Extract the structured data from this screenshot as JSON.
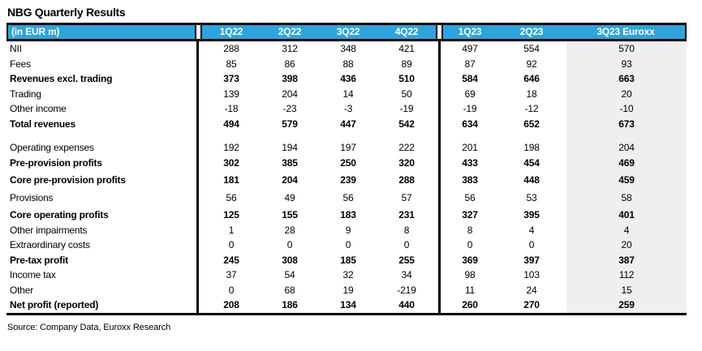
{
  "title": "NBG Quarterly Results",
  "source": "Source: Company Data, Euroxx Research",
  "colors": {
    "header_bg": "#2FA3DC",
    "header_text": "#FFFFFF",
    "highlight_column_bg": "#EFEFEF",
    "border": "#000000"
  },
  "header": {
    "label": "(in EUR m)",
    "columns": [
      "1Q22",
      "2Q22",
      "3Q22",
      "4Q22",
      "1Q23",
      "2Q23",
      "3Q23 Euroxx"
    ]
  },
  "rows": [
    {
      "label": "NII",
      "bold": false,
      "values": [
        288,
        312,
        348,
        421,
        497,
        554,
        570
      ]
    },
    {
      "label": "Fees",
      "bold": false,
      "values": [
        85,
        86,
        88,
        89,
        87,
        92,
        93
      ]
    },
    {
      "label": "Revenues excl. trading",
      "bold": true,
      "values": [
        373,
        398,
        436,
        510,
        584,
        646,
        663
      ]
    },
    {
      "label": "Trading",
      "bold": false,
      "values": [
        139,
        204,
        14,
        50,
        69,
        18,
        20
      ]
    },
    {
      "label": "Other income",
      "bold": false,
      "values": [
        -18,
        -23,
        -3,
        -19,
        -19,
        -12,
        -10
      ]
    },
    {
      "label": "Total revenues",
      "bold": true,
      "values": [
        494,
        579,
        447,
        542,
        634,
        652,
        673
      ]
    },
    {
      "spacer": true
    },
    {
      "label": "Operating expenses",
      "bold": false,
      "values": [
        192,
        194,
        197,
        222,
        201,
        198,
        204
      ]
    },
    {
      "label": "Pre-provision profits",
      "bold": true,
      "values": [
        302,
        385,
        250,
        320,
        433,
        454,
        469
      ]
    },
    {
      "label": "Core pre-provision profits",
      "bold": true,
      "pad": true,
      "values": [
        181,
        204,
        239,
        288,
        383,
        448,
        459
      ]
    },
    {
      "label": "Provisions",
      "bold": false,
      "pad": true,
      "values": [
        56,
        49,
        56,
        57,
        56,
        53,
        58
      ]
    },
    {
      "label": "Core operating profits",
      "bold": true,
      "pad": true,
      "values": [
        125,
        155,
        183,
        231,
        327,
        395,
        401
      ]
    },
    {
      "label": "Other impairments",
      "bold": false,
      "values": [
        1,
        28,
        9,
        8,
        8,
        4,
        4
      ]
    },
    {
      "label": "Extraordinary costs",
      "bold": false,
      "values": [
        0,
        0,
        0,
        0,
        0,
        0,
        20
      ]
    },
    {
      "label": "Pre-tax profit",
      "bold": true,
      "values": [
        245,
        308,
        185,
        255,
        369,
        397,
        387
      ]
    },
    {
      "label": "Income tax",
      "bold": false,
      "values": [
        37,
        54,
        32,
        34,
        98,
        103,
        112
      ]
    },
    {
      "label": "Other",
      "bold": false,
      "values": [
        0,
        68,
        19,
        -219,
        11,
        24,
        15
      ]
    },
    {
      "label": "Net profit (reported)",
      "bold": true,
      "values": [
        208,
        186,
        134,
        440,
        260,
        270,
        259
      ]
    }
  ]
}
